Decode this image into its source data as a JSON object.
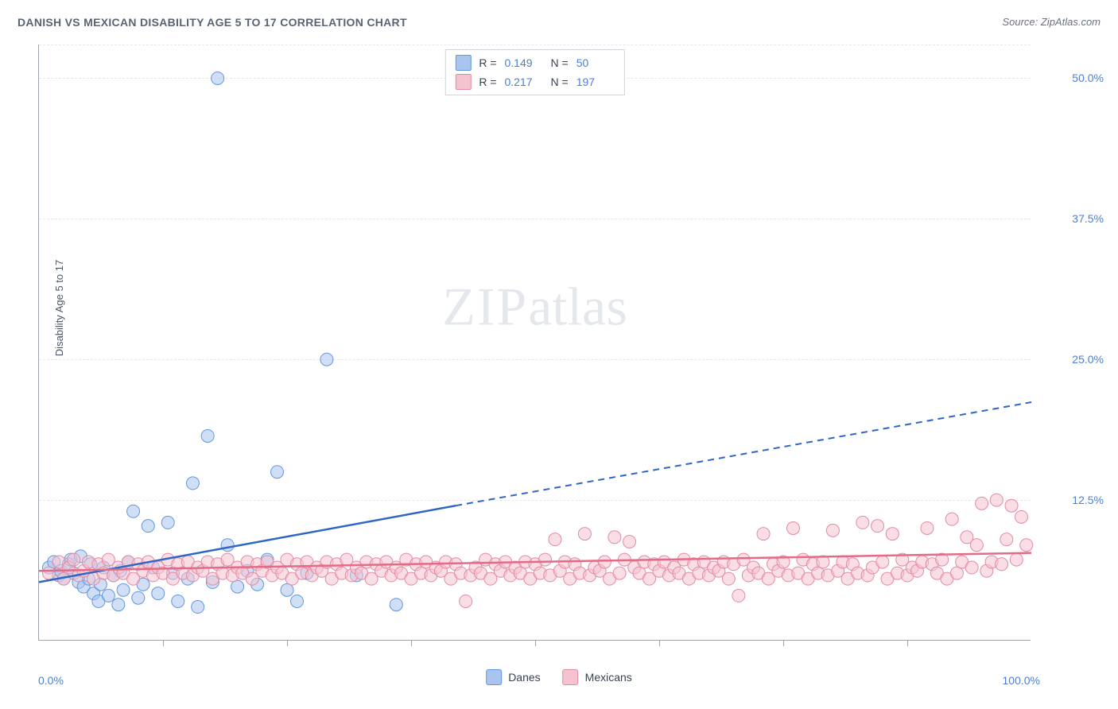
{
  "title": "DANISH VS MEXICAN DISABILITY AGE 5 TO 17 CORRELATION CHART",
  "source_label": "Source: ZipAtlas.com",
  "y_axis_label": "Disability Age 5 to 17",
  "watermark_zip": "ZIP",
  "watermark_atlas": "atlas",
  "chart": {
    "type": "scatter",
    "background_color": "#ffffff",
    "grid_color": "#e5e7eb",
    "axis_color": "#9ca3af",
    "xlim": [
      0,
      100
    ],
    "ylim": [
      0,
      53
    ],
    "x_tick_positions": [
      0,
      12.5,
      25,
      37.5,
      50,
      62.5,
      75,
      87.5,
      100
    ],
    "x_tick_labels": {
      "left": "0.0%",
      "right": "100.0%"
    },
    "y_gridlines": [
      12.5,
      25,
      37.5,
      50,
      53
    ],
    "y_tick_labels": [
      {
        "value": 12.5,
        "label": "12.5%"
      },
      {
        "value": 25,
        "label": "25.0%"
      },
      {
        "value": 37.5,
        "label": "37.5%"
      },
      {
        "value": 50,
        "label": "50.0%"
      }
    ],
    "marker_radius": 8,
    "marker_opacity": 0.55,
    "line_width": 2.5,
    "series": [
      {
        "name": "Danes",
        "color_fill": "#a9c5ef",
        "color_stroke": "#6296de",
        "line_color": "#2e66c4",
        "r_value": "0.149",
        "n_value": "50",
        "trend": {
          "x1": 0,
          "y1": 5.2,
          "x2_solid": 42,
          "y2_solid": 12.0,
          "x2": 100,
          "y2": 21.2
        },
        "points": [
          [
            1,
            6.5
          ],
          [
            1.5,
            7
          ],
          [
            2,
            5.8
          ],
          [
            2.2,
            6.2
          ],
          [
            2.5,
            5.5
          ],
          [
            3,
            6.8
          ],
          [
            3.2,
            7.2
          ],
          [
            3.5,
            6
          ],
          [
            4,
            5.2
          ],
          [
            4.2,
            7.5
          ],
          [
            4.5,
            4.8
          ],
          [
            5,
            5.5
          ],
          [
            5.2,
            6.8
          ],
          [
            5.5,
            4.2
          ],
          [
            6,
            3.5
          ],
          [
            6.2,
            5
          ],
          [
            6.5,
            6.5
          ],
          [
            7,
            4
          ],
          [
            7.5,
            5.8
          ],
          [
            8,
            3.2
          ],
          [
            8.2,
            6.2
          ],
          [
            8.5,
            4.5
          ],
          [
            9,
            7
          ],
          [
            9.5,
            11.5
          ],
          [
            10,
            3.8
          ],
          [
            10.5,
            5
          ],
          [
            11,
            10.2
          ],
          [
            11.5,
            6.5
          ],
          [
            12,
            4.2
          ],
          [
            13,
            10.5
          ],
          [
            13.5,
            6
          ],
          [
            14,
            3.5
          ],
          [
            15,
            5.5
          ],
          [
            15.5,
            14
          ],
          [
            16,
            3
          ],
          [
            17,
            18.2
          ],
          [
            17.5,
            5.2
          ],
          [
            18,
            50
          ],
          [
            19,
            8.5
          ],
          [
            20,
            4.8
          ],
          [
            21,
            6.2
          ],
          [
            22,
            5
          ],
          [
            23,
            7.2
          ],
          [
            24,
            15
          ],
          [
            25,
            4.5
          ],
          [
            26,
            3.5
          ],
          [
            27,
            6
          ],
          [
            29,
            25
          ],
          [
            32,
            5.8
          ],
          [
            36,
            3.2
          ]
        ]
      },
      {
        "name": "Mexicans",
        "color_fill": "#f5c2cf",
        "color_stroke": "#e38aa2",
        "line_color": "#e46b87",
        "r_value": "0.217",
        "n_value": "197",
        "trend": {
          "x1": 0,
          "y1": 6.2,
          "x2_solid": 100,
          "y2_solid": 7.8,
          "x2": 100,
          "y2": 7.8
        },
        "points": [
          [
            1,
            6
          ],
          [
            2,
            7
          ],
          [
            2.5,
            5.5
          ],
          [
            3,
            6.5
          ],
          [
            3.5,
            7.2
          ],
          [
            4,
            5.8
          ],
          [
            4.5,
            6.2
          ],
          [
            5,
            7
          ],
          [
            5.5,
            5.5
          ],
          [
            6,
            6.8
          ],
          [
            6.5,
            6
          ],
          [
            7,
            7.2
          ],
          [
            7.5,
            5.8
          ],
          [
            8,
            6.5
          ],
          [
            8.5,
            6
          ],
          [
            9,
            7
          ],
          [
            9.5,
            5.5
          ],
          [
            10,
            6.8
          ],
          [
            10.5,
            6.2
          ],
          [
            11,
            7
          ],
          [
            11.5,
            5.8
          ],
          [
            12,
            6.5
          ],
          [
            12.5,
            6
          ],
          [
            13,
            7.2
          ],
          [
            13.5,
            5.5
          ],
          [
            14,
            6.8
          ],
          [
            14.5,
            6
          ],
          [
            15,
            7
          ],
          [
            15.5,
            5.8
          ],
          [
            16,
            6.5
          ],
          [
            16.5,
            6.2
          ],
          [
            17,
            7
          ],
          [
            17.5,
            5.5
          ],
          [
            18,
            6.8
          ],
          [
            18.5,
            6
          ],
          [
            19,
            7.2
          ],
          [
            19.5,
            5.8
          ],
          [
            20,
            6.5
          ],
          [
            20.5,
            6
          ],
          [
            21,
            7
          ],
          [
            21.5,
            5.5
          ],
          [
            22,
            6.8
          ],
          [
            22.5,
            6.2
          ],
          [
            23,
            7
          ],
          [
            23.5,
            5.8
          ],
          [
            24,
            6.5
          ],
          [
            24.5,
            6
          ],
          [
            25,
            7.2
          ],
          [
            25.5,
            5.5
          ],
          [
            26,
            6.8
          ],
          [
            26.5,
            6
          ],
          [
            27,
            7
          ],
          [
            27.5,
            5.8
          ],
          [
            28,
            6.5
          ],
          [
            28.5,
            6.2
          ],
          [
            29,
            7
          ],
          [
            29.5,
            5.5
          ],
          [
            30,
            6.8
          ],
          [
            30.5,
            6
          ],
          [
            31,
            7.2
          ],
          [
            31.5,
            5.8
          ],
          [
            32,
            6.5
          ],
          [
            32.5,
            6
          ],
          [
            33,
            7
          ],
          [
            33.5,
            5.5
          ],
          [
            34,
            6.8
          ],
          [
            34.5,
            6.2
          ],
          [
            35,
            7
          ],
          [
            35.5,
            5.8
          ],
          [
            36,
            6.5
          ],
          [
            36.5,
            6
          ],
          [
            37,
            7.2
          ],
          [
            37.5,
            5.5
          ],
          [
            38,
            6.8
          ],
          [
            38.5,
            6
          ],
          [
            39,
            7
          ],
          [
            39.5,
            5.8
          ],
          [
            40,
            6.5
          ],
          [
            40.5,
            6.2
          ],
          [
            41,
            7
          ],
          [
            41.5,
            5.5
          ],
          [
            42,
            6.8
          ],
          [
            42.5,
            6
          ],
          [
            43,
            3.5
          ],
          [
            43.5,
            5.8
          ],
          [
            44,
            6.5
          ],
          [
            44.5,
            6
          ],
          [
            45,
            7.2
          ],
          [
            45.5,
            5.5
          ],
          [
            46,
            6.8
          ],
          [
            46.5,
            6.2
          ],
          [
            47,
            7
          ],
          [
            47.5,
            5.8
          ],
          [
            48,
            6.5
          ],
          [
            48.5,
            6
          ],
          [
            49,
            7
          ],
          [
            49.5,
            5.5
          ],
          [
            50,
            6.8
          ],
          [
            50.5,
            6
          ],
          [
            51,
            7.2
          ],
          [
            51.5,
            5.8
          ],
          [
            52,
            9
          ],
          [
            52.5,
            6.2
          ],
          [
            53,
            7
          ],
          [
            53.5,
            5.5
          ],
          [
            54,
            6.8
          ],
          [
            54.5,
            6
          ],
          [
            55,
            9.5
          ],
          [
            55.5,
            5.8
          ],
          [
            56,
            6.5
          ],
          [
            56.5,
            6.2
          ],
          [
            57,
            7
          ],
          [
            57.5,
            5.5
          ],
          [
            58,
            9.2
          ],
          [
            58.5,
            6
          ],
          [
            59,
            7.2
          ],
          [
            59.5,
            8.8
          ],
          [
            60,
            6.5
          ],
          [
            60.5,
            6
          ],
          [
            61,
            7
          ],
          [
            61.5,
            5.5
          ],
          [
            62,
            6.8
          ],
          [
            62.5,
            6.2
          ],
          [
            63,
            7
          ],
          [
            63.5,
            5.8
          ],
          [
            64,
            6.5
          ],
          [
            64.5,
            6
          ],
          [
            65,
            7.2
          ],
          [
            65.5,
            5.5
          ],
          [
            66,
            6.8
          ],
          [
            66.5,
            6
          ],
          [
            67,
            7
          ],
          [
            67.5,
            5.8
          ],
          [
            68,
            6.5
          ],
          [
            68.5,
            6.2
          ],
          [
            69,
            7
          ],
          [
            69.5,
            5.5
          ],
          [
            70,
            6.8
          ],
          [
            70.5,
            4
          ],
          [
            71,
            7.2
          ],
          [
            71.5,
            5.8
          ],
          [
            72,
            6.5
          ],
          [
            72.5,
            6
          ],
          [
            73,
            9.5
          ],
          [
            73.5,
            5.5
          ],
          [
            74,
            6.8
          ],
          [
            74.5,
            6.2
          ],
          [
            75,
            7
          ],
          [
            75.5,
            5.8
          ],
          [
            76,
            10
          ],
          [
            76.5,
            6
          ],
          [
            77,
            7.2
          ],
          [
            77.5,
            5.5
          ],
          [
            78,
            6.8
          ],
          [
            78.5,
            6
          ],
          [
            79,
            7
          ],
          [
            79.5,
            5.8
          ],
          [
            80,
            9.8
          ],
          [
            80.5,
            6.2
          ],
          [
            81,
            7
          ],
          [
            81.5,
            5.5
          ],
          [
            82,
            6.8
          ],
          [
            82.5,
            6
          ],
          [
            83,
            10.5
          ],
          [
            83.5,
            5.8
          ],
          [
            84,
            6.5
          ],
          [
            84.5,
            10.2
          ],
          [
            85,
            7
          ],
          [
            85.5,
            5.5
          ],
          [
            86,
            9.5
          ],
          [
            86.5,
            6
          ],
          [
            87,
            7.2
          ],
          [
            87.5,
            5.8
          ],
          [
            88,
            6.5
          ],
          [
            88.5,
            6.2
          ],
          [
            89,
            7
          ],
          [
            89.5,
            10
          ],
          [
            90,
            6.8
          ],
          [
            90.5,
            6
          ],
          [
            91,
            7.2
          ],
          [
            91.5,
            5.5
          ],
          [
            92,
            10.8
          ],
          [
            92.5,
            6
          ],
          [
            93,
            7
          ],
          [
            93.5,
            9.2
          ],
          [
            94,
            6.5
          ],
          [
            94.5,
            8.5
          ],
          [
            95,
            12.2
          ],
          [
            95.5,
            6.2
          ],
          [
            96,
            7
          ],
          [
            96.5,
            12.5
          ],
          [
            97,
            6.8
          ],
          [
            97.5,
            9
          ],
          [
            98,
            12
          ],
          [
            98.5,
            7.2
          ],
          [
            99,
            11
          ],
          [
            99.5,
            8.5
          ]
        ]
      }
    ]
  },
  "stats_legend": {
    "r_label": "R = ",
    "n_label": "N = "
  },
  "bottom_legend": {
    "items": [
      "Danes",
      "Mexicans"
    ]
  }
}
